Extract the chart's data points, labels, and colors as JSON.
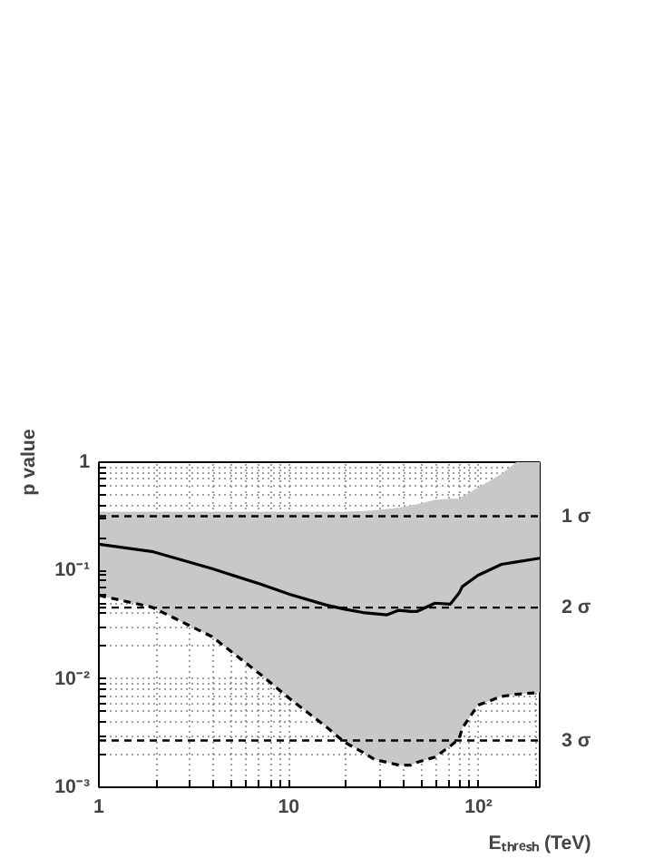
{
  "chart_data": {
    "type": "line",
    "xlabel": "Eₜₕᵣₑₛₕ (TeV)",
    "ylabel": "p value",
    "log": "xy",
    "grid": true,
    "marker": "none",
    "xlim": [
      1,
      210
    ],
    "ylim": [
      0.001,
      1
    ],
    "xticks": [
      1,
      {
        "value": 2,
        "label": null
      },
      {
        "value": 3,
        "label": null
      },
      {
        "value": 4,
        "label": null
      },
      {
        "value": 5,
        "label": null
      },
      {
        "value": 6,
        "label": null
      },
      {
        "value": 7,
        "label": null
      },
      {
        "value": 8,
        "label": null
      },
      {
        "value": 9,
        "label": null
      },
      10,
      {
        "value": 20,
        "label": null
      },
      {
        "value": 30,
        "label": null
      },
      {
        "value": 40,
        "label": null
      },
      {
        "value": 50,
        "label": null
      },
      {
        "value": 60,
        "label": null
      },
      {
        "value": 70,
        "label": null
      },
      {
        "value": 80,
        "label": null
      },
      {
        "value": 90,
        "label": null
      },
      {
        "value": 100,
        "label": "10²"
      },
      {
        "value": 200,
        "label": null
      }
    ],
    "yticks": [
      {
        "value": 0.001,
        "label": "10⁻³"
      },
      {
        "value": 0.002,
        "label": null
      },
      {
        "value": 0.003,
        "label": null
      },
      {
        "value": 0.004,
        "label": null
      },
      {
        "value": 0.005,
        "label": null
      },
      {
        "value": 0.006,
        "label": null
      },
      {
        "value": 0.007,
        "label": null
      },
      {
        "value": 0.008,
        "label": null
      },
      {
        "value": 0.009,
        "label": null
      },
      {
        "value": 0.01,
        "label": "10⁻²"
      },
      {
        "value": 0.02,
        "label": null
      },
      {
        "value": 0.03,
        "label": null
      },
      {
        "value": 0.04,
        "label": null
      },
      {
        "value": 0.05,
        "label": null
      },
      {
        "value": 0.06,
        "label": null
      },
      {
        "value": 0.07,
        "label": null
      },
      {
        "value": 0.08,
        "label": null
      },
      {
        "value": 0.09,
        "label": null
      },
      {
        "value": 0.1,
        "label": "10⁻¹"
      },
      {
        "value": 0.2,
        "label": null
      },
      {
        "value": 0.3,
        "label": null
      },
      {
        "value": 0.4,
        "label": null
      },
      {
        "value": 0.5,
        "label": null
      },
      {
        "value": 0.6,
        "label": null
      },
      {
        "value": 0.7,
        "label": null
      },
      {
        "value": 0.8,
        "label": null
      },
      {
        "value": 0.9,
        "label": null
      },
      1
    ],
    "series": [
      {
        "color": "#000000",
        "line_style": "dashed",
        "x": [
          1,
          1.9,
          3.95,
          7.1,
          10.2,
          15.8,
          19.7,
          24.6,
          28.4,
          32.8,
          38,
          44,
          47.5,
          59,
          71,
          79,
          82,
          99,
          132,
          158,
          210
        ],
        "values": [
          0.059,
          0.046,
          0.0245,
          0.011,
          0.0065,
          0.0036,
          0.0026,
          0.0021,
          0.0018,
          0.0017,
          0.0016,
          0.0016,
          0.0017,
          0.0019,
          0.0024,
          0.0028,
          0.0035,
          0.0057,
          0.0069,
          0.0072,
          0.0075
        ]
      },
      {
        "color": "#000000",
        "line_style": "solid",
        "x": [
          1,
          1.9,
          3.95,
          7.1,
          10.2,
          15.8,
          19.7,
          24.6,
          28.4,
          32.8,
          38,
          44,
          47.5,
          59,
          71,
          79,
          82,
          99,
          132,
          158,
          210
        ],
        "values": [
          0.175,
          0.15,
          0.104,
          0.075,
          0.06,
          0.048,
          0.044,
          0.041,
          0.04,
          0.039,
          0.043,
          0.042,
          0.042,
          0.05,
          0.049,
          0.062,
          0.071,
          0.09,
          0.114,
          0.12,
          0.13
        ],
        "lower": [
          0.059,
          0.046,
          0.0245,
          0.011,
          0.0065,
          0.0036,
          0.0026,
          0.0021,
          0.0018,
          0.0017,
          0.0016,
          0.0016,
          0.0017,
          0.0019,
          0.0024,
          0.0028,
          0.0035,
          0.0057,
          0.0069,
          0.0072,
          0.0075
        ],
        "upper": [
          0.35,
          0.35,
          0.35,
          0.35,
          0.35,
          0.35,
          0.35,
          0.355,
          0.36,
          0.37,
          0.38,
          0.4,
          0.41,
          0.45,
          0.46,
          0.46,
          0.48,
          0.58,
          0.78,
          1,
          1
        ]
      }
    ],
    "ref_lines": [
      {
        "axis": "y",
        "value": 0.317,
        "label": "1 σ",
        "line_style": "dashed",
        "color": "#000000"
      },
      {
        "axis": "y",
        "value": 0.0455,
        "label": "2 σ",
        "line_style": "dashed",
        "color": "#000000"
      },
      {
        "axis": "y",
        "value": 0.0027,
        "label": "3 σ",
        "line_style": "dashed",
        "color": "#000000"
      }
    ]
  }
}
